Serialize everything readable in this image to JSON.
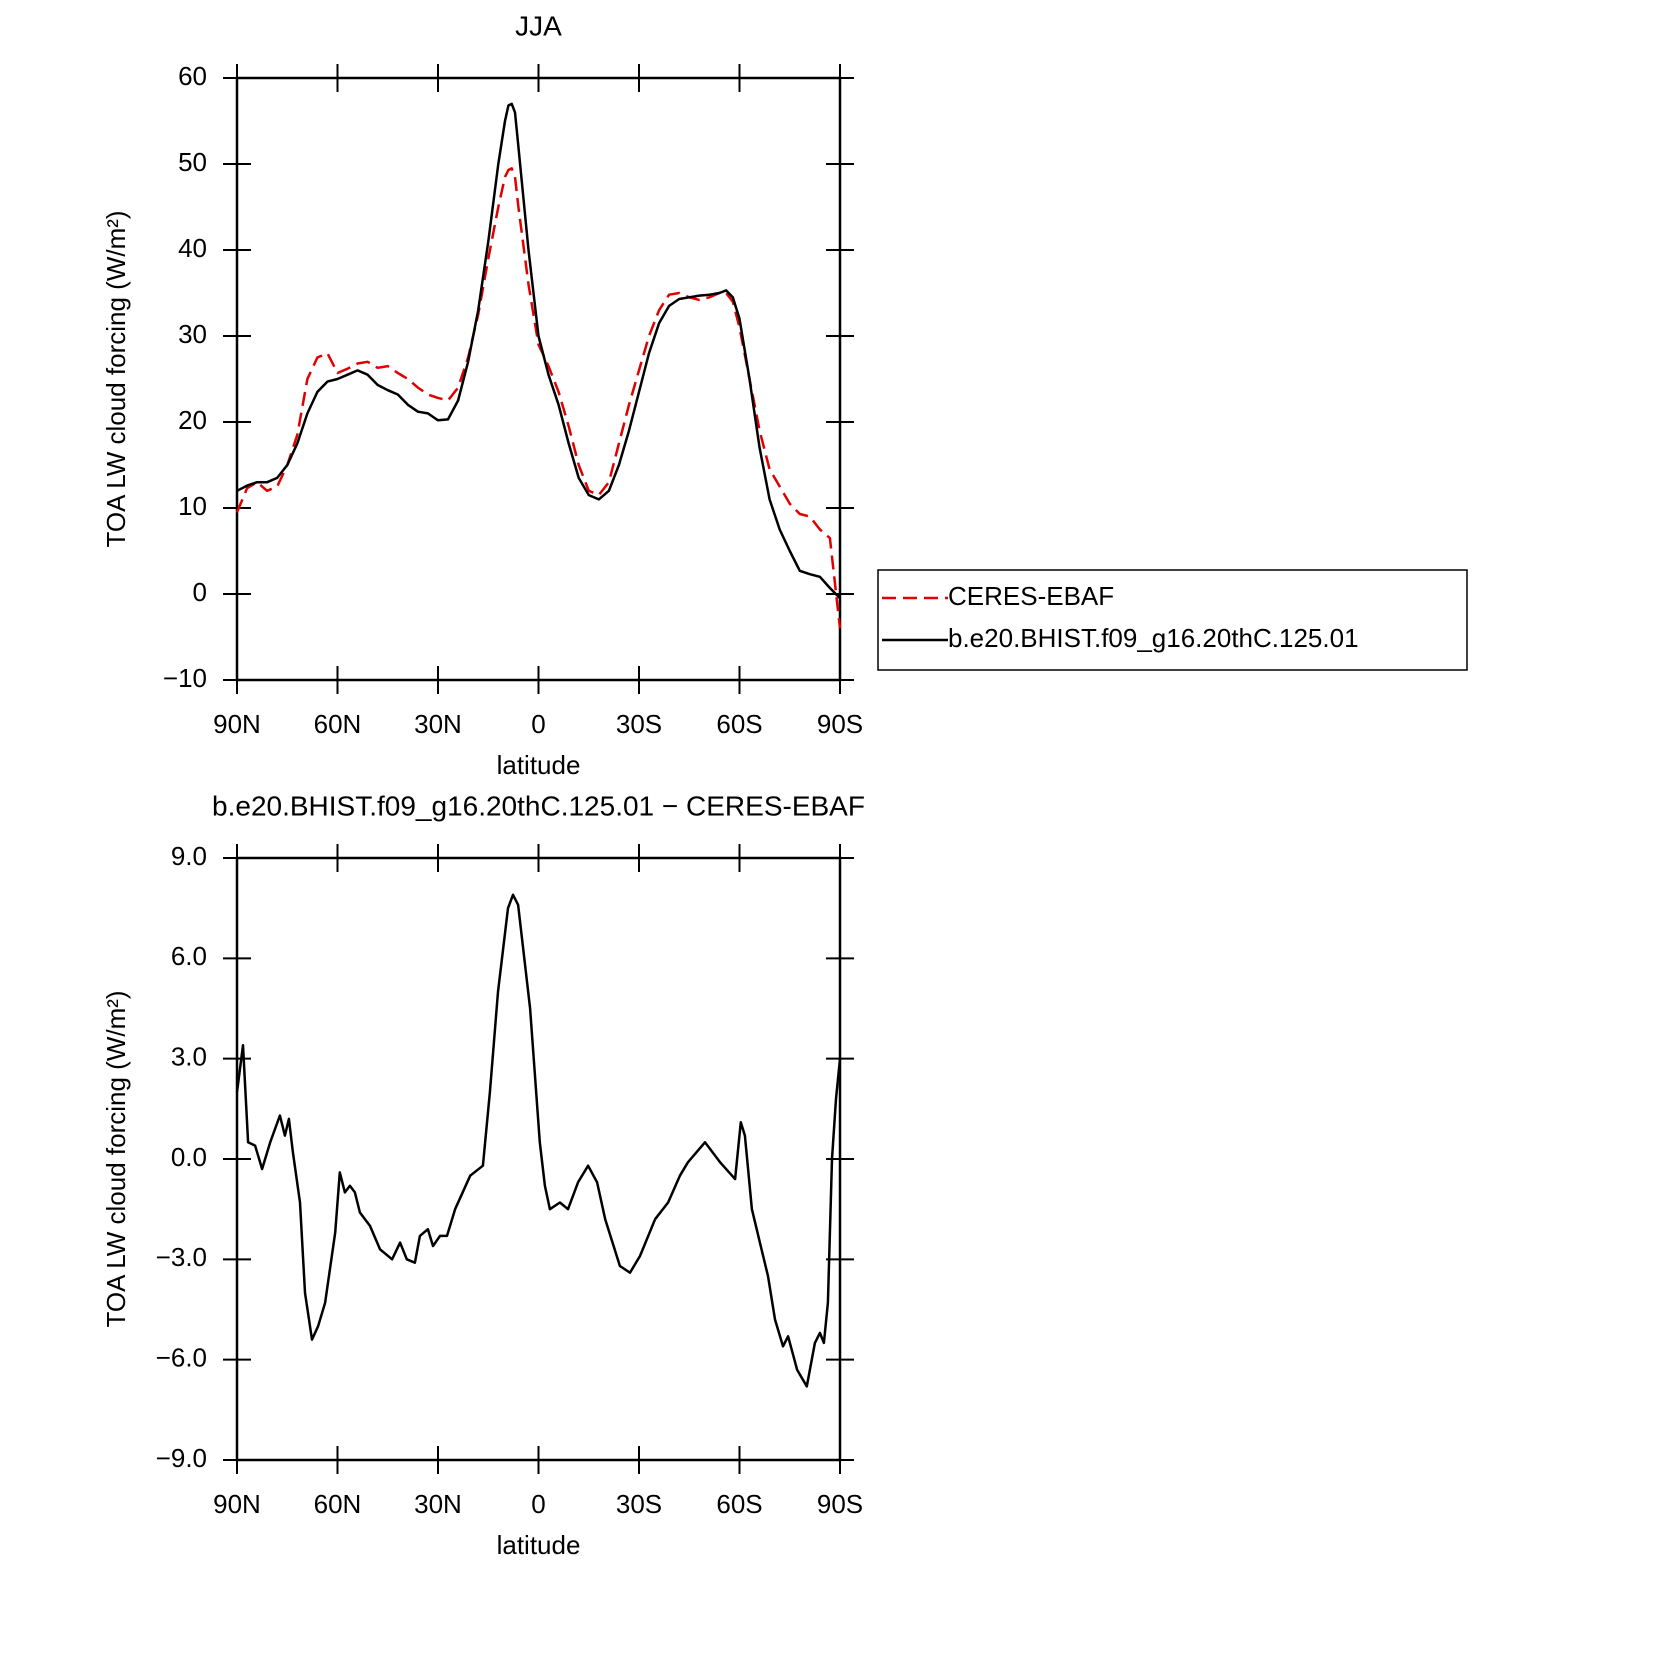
{
  "chart_data": [
    {
      "type": "line",
      "title": "JJA",
      "xlabel": "latitude",
      "ylabel": "TOA LW cloud forcing (W/m²)",
      "x": [
        90,
        87,
        84,
        81,
        78,
        75,
        72,
        69,
        66,
        63,
        60,
        57,
        54,
        51,
        48,
        45,
        42,
        39,
        36,
        33,
        30,
        27,
        24,
        21,
        18,
        15,
        12,
        10,
        9,
        8,
        7,
        6,
        3,
        0,
        -3,
        -6,
        -9,
        -12,
        -15,
        -18,
        -21,
        -24,
        -27,
        -30,
        -33,
        -36,
        -39,
        -42,
        -45,
        -48,
        -51,
        -54,
        -56,
        -58,
        -60,
        -63,
        -66,
        -69,
        -72,
        -75,
        -78,
        -81,
        -84,
        -87,
        -90
      ],
      "series": [
        {
          "name": "CERES-EBAF",
          "color": "#e00000",
          "line_style": "dashed",
          "values": [
            9.5,
            12.3,
            13,
            12,
            12.5,
            15,
            18.5,
            25,
            27.5,
            28,
            25.7,
            26.2,
            26.8,
            27,
            26.3,
            26.5,
            25.7,
            25,
            24,
            23.2,
            22.8,
            22.5,
            24,
            27.5,
            32.5,
            39,
            45,
            48.5,
            49.3,
            49.5,
            48.5,
            45,
            36,
            29,
            26.5,
            23.5,
            19.5,
            15,
            12,
            11.5,
            13,
            17.5,
            22,
            26,
            30,
            33,
            34.8,
            35,
            34.5,
            34.2,
            34.5,
            35,
            35,
            34,
            31,
            25,
            19,
            14.5,
            12.5,
            10.5,
            9.3,
            9,
            7.5,
            6.5,
            -4
          ]
        },
        {
          "name": "b.e20.BHIST.f09_g16.20thC.125.01",
          "color": "#000000",
          "line_style": "solid",
          "values": [
            12,
            12.6,
            13,
            13,
            13.5,
            15,
            17.5,
            21,
            23.5,
            24.7,
            25,
            25.5,
            26,
            25.5,
            24.3,
            23.7,
            23.2,
            22,
            21.2,
            21,
            20.2,
            20.3,
            22.5,
            27,
            33,
            41,
            50,
            55,
            56.8,
            57,
            56,
            52,
            40,
            30,
            25.5,
            22,
            17.5,
            13.5,
            11.5,
            11,
            12,
            15,
            19,
            23.5,
            28,
            31.5,
            33.5,
            34.3,
            34.5,
            34.7,
            34.8,
            35,
            35.3,
            34.5,
            32,
            25,
            17,
            11,
            7.5,
            5,
            2.7,
            2.3,
            2,
            0.7,
            -0.5
          ]
        }
      ],
      "xlim": [
        90,
        -90
      ],
      "xticks": [
        {
          "value": 90,
          "label": "90N"
        },
        {
          "value": 60,
          "label": "60N"
        },
        {
          "value": 30,
          "label": "30N"
        },
        0,
        {
          "value": -30,
          "label": "30S"
        },
        {
          "value": -60,
          "label": "60S"
        },
        {
          "value": -90,
          "label": "90S"
        }
      ],
      "ylim": [
        -10,
        60
      ],
      "yticks": [
        {
          "value": -10,
          "label": "−10"
        },
        0,
        10,
        20,
        30,
        40,
        50,
        60
      ],
      "legend": "right"
    },
    {
      "type": "line",
      "title": "b.e20.BHIST.f09_g16.20thC.125.01 − CERES-EBAF",
      "xlabel": "latitude",
      "ylabel": "TOA LW cloud forcing (W/m²)",
      "x": [
        90,
        88.2,
        86.7,
        84.6,
        82.5,
        80.1,
        77.2,
        75.7,
        74.5,
        73.3,
        71.2,
        69.7,
        67.6,
        65.8,
        63.7,
        60.7,
        59.3,
        57.8,
        56.3,
        54.8,
        53.3,
        50.3,
        47.3,
        43.7,
        41.3,
        39.3,
        36.9,
        35.4,
        33,
        31.5,
        29.4,
        27.3,
        24.9,
        20.4,
        16.6,
        14.5,
        12.1,
        9.1,
        7.6,
        6.1,
        2.5,
        -0.4,
        -1.9,
        -3.4,
        -6.4,
        -8.8,
        -11.8,
        -14.8,
        -17.5,
        -19.9,
        -24.3,
        -27.3,
        -30.3,
        -34.8,
        -38.7,
        -42.2,
        -44.6,
        -49.7,
        -54.2,
        -58.7,
        -60.4,
        -61.6,
        -63.7,
        -66.1,
        -68.5,
        -70.6,
        -73,
        -74.5,
        -77.2,
        -80.1,
        -82.5,
        -84,
        -85.2,
        -86.4,
        -87.6,
        -88.8,
        -90
      ],
      "values": [
        2,
        3.4,
        0.5,
        0.4,
        -0.3,
        0.5,
        1.3,
        0.7,
        1.2,
        0.2,
        -1.3,
        -4,
        -5.4,
        -5,
        -4.3,
        -2.2,
        -0.4,
        -1,
        -0.8,
        -1,
        -1.6,
        -2,
        -2.7,
        -3,
        -2.5,
        -3,
        -3.1,
        -2.3,
        -2.1,
        -2.6,
        -2.3,
        -2.3,
        -1.5,
        -0.5,
        -0.2,
        2,
        5,
        7.5,
        7.9,
        7.6,
        4.5,
        0.5,
        -0.8,
        -1.5,
        -1.3,
        -1.5,
        -0.7,
        -0.2,
        -0.7,
        -1.8,
        -3.2,
        -3.4,
        -2.9,
        -1.8,
        -1.3,
        -0.5,
        -0.1,
        0.5,
        -0.1,
        -0.6,
        1.1,
        0.7,
        -1.5,
        -2.5,
        -3.5,
        -4.8,
        -5.6,
        -5.3,
        -6.3,
        -6.8,
        -5.5,
        -5.2,
        -5.5,
        -4.3,
        0,
        1.8,
        3
      ],
      "color": "#000000",
      "line_style": "solid",
      "xlim": [
        90,
        -90
      ],
      "xticks": [
        {
          "value": 90,
          "label": "90N"
        },
        {
          "value": 60,
          "label": "60N"
        },
        {
          "value": 30,
          "label": "30N"
        },
        0,
        {
          "value": -30,
          "label": "30S"
        },
        {
          "value": -60,
          "label": "60S"
        },
        {
          "value": -90,
          "label": "90S"
        }
      ],
      "ylim": [
        -9,
        9
      ],
      "yticks": [
        {
          "value": -9,
          "label": "−9.0"
        },
        {
          "value": -6,
          "label": "−6.0"
        },
        {
          "value": -3,
          "label": "−3.0"
        },
        {
          "value": 0,
          "label": "0.0"
        },
        {
          "value": 3,
          "label": "3.0"
        },
        {
          "value": 6,
          "label": "6.0"
        },
        {
          "value": 9,
          "label": "9.0"
        }
      ]
    }
  ]
}
